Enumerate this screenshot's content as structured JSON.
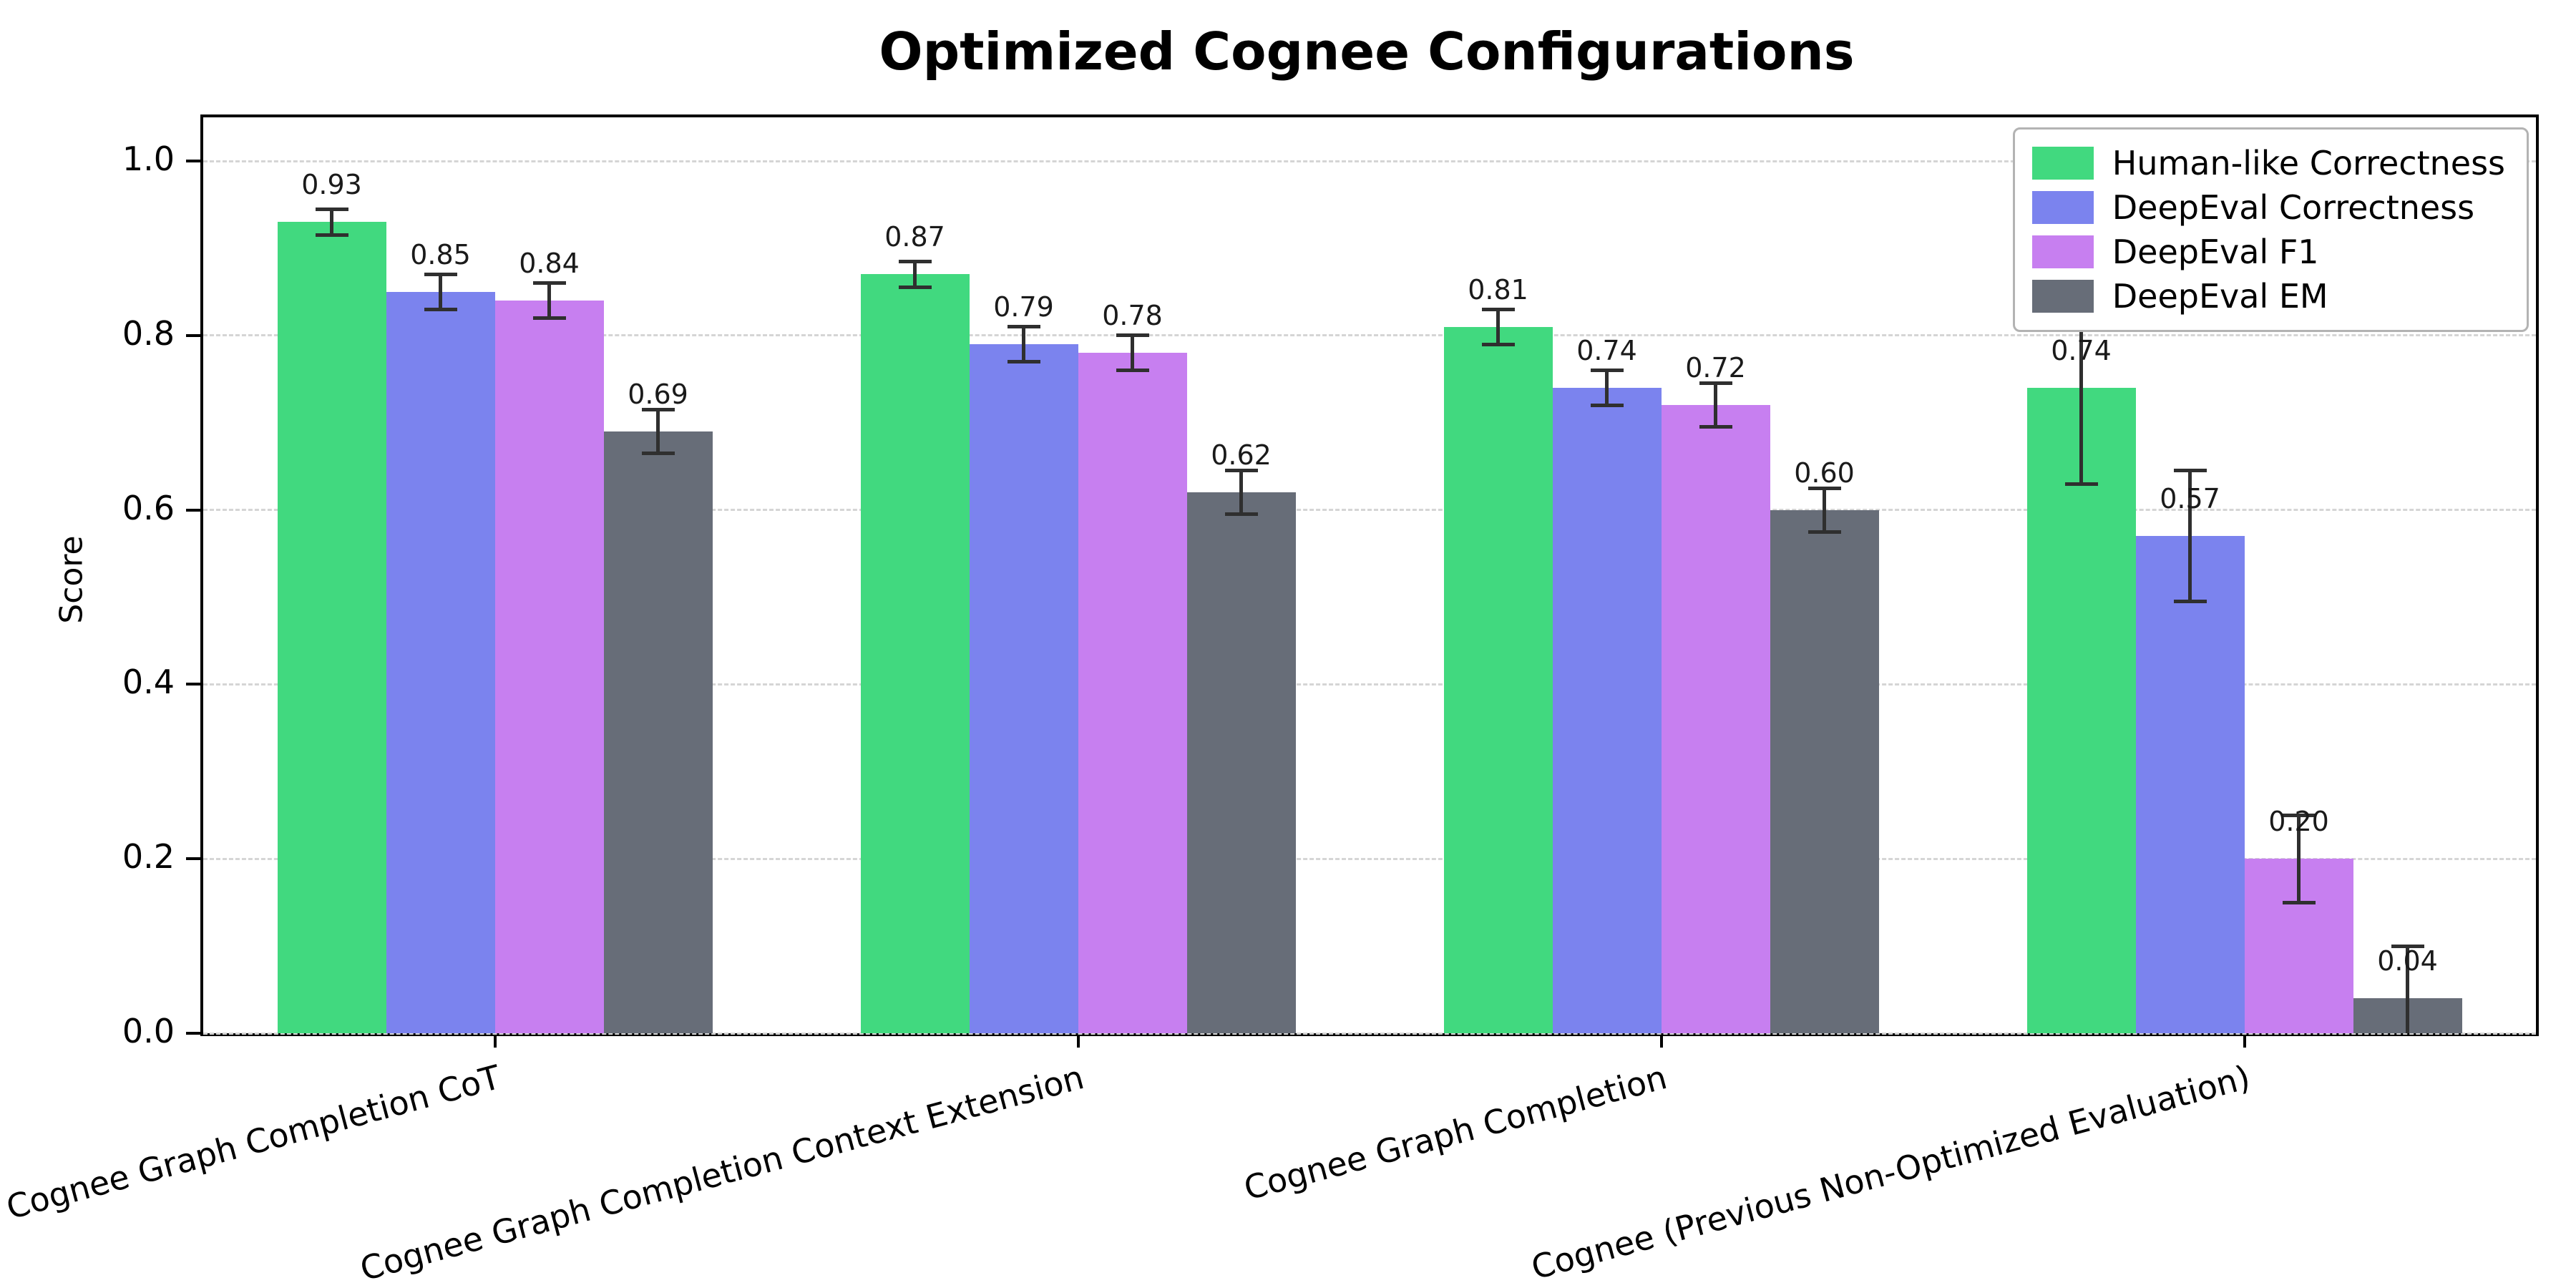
{
  "colors": {
    "grid": "#d5d5d5",
    "spine": "#000000",
    "errorbar": "#2f2f2f",
    "value_label": "#1a1a1a",
    "background": "#ffffff"
  },
  "chart_data": {
    "type": "bar",
    "title": "Optimized Cognee Configurations",
    "ylabel": "Score",
    "ylim": [
      0,
      1.05
    ],
    "yticks": [
      0.0,
      0.2,
      0.4,
      0.6,
      0.8,
      1.0
    ],
    "grid": "horizontal-dashed",
    "legend_position": "upper-right",
    "value_label_decimals": 2,
    "categories": [
      "Cognee Graph Completion CoT",
      "Cognee Graph Completion Context Extension",
      "Cognee Graph Completion",
      "Cognee (Previous Non-Optimized Evaluation)"
    ],
    "series": [
      {
        "name": "Human-like Correctness",
        "color": "#41d97f",
        "values": [
          0.93,
          0.87,
          0.81,
          0.74
        ],
        "errors": [
          0.015,
          0.015,
          0.02,
          0.11
        ]
      },
      {
        "name": "DeepEval Correctness",
        "color": "#7b83ee",
        "values": [
          0.85,
          0.79,
          0.74,
          0.57
        ],
        "errors": [
          0.02,
          0.02,
          0.02,
          0.075
        ]
      },
      {
        "name": "DeepEval F1",
        "color": "#c77ff0",
        "values": [
          0.84,
          0.78,
          0.72,
          0.2
        ],
        "errors": [
          0.02,
          0.02,
          0.025,
          0.05
        ]
      },
      {
        "name": "DeepEval EM",
        "color": "#676d78",
        "values": [
          0.69,
          0.62,
          0.6,
          0.04
        ],
        "errors": [
          0.025,
          0.025,
          0.025,
          0.06
        ]
      }
    ]
  }
}
